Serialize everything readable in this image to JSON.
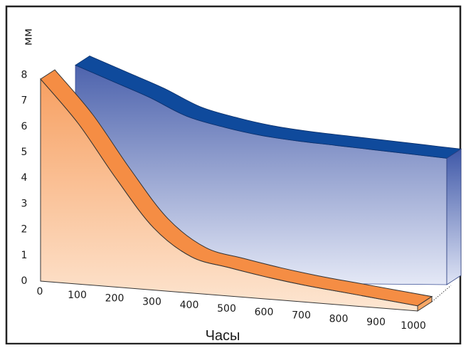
{
  "chart_data": {
    "type": "area",
    "title": "",
    "xlabel": "Часы",
    "ylabel": "мм",
    "x": [
      0,
      100,
      200,
      300,
      400,
      500,
      600,
      700,
      800,
      900,
      1000
    ],
    "x_tick_labels": [
      "0",
      "100",
      "200",
      "300",
      "400",
      "500",
      "600",
      "700",
      "800",
      "900",
      "1000"
    ],
    "y_tick_labels": [
      "0",
      "1",
      "2",
      "3",
      "4",
      "5",
      "6",
      "7",
      "8"
    ],
    "ylim": [
      0,
      8
    ],
    "xlim": [
      0,
      1000
    ],
    "grid": false,
    "series": [
      {
        "color": "#f7944a",
        "values": [
          7.8,
          6.2,
          4.2,
          2.4,
          1.4,
          1.1,
          0.85,
          0.65,
          0.5,
          0.35,
          0.2
        ]
      },
      {
        "color": "#1f4e9e",
        "values": [
          8.2,
          7.6,
          7.0,
          6.3,
          5.9,
          5.6,
          5.4,
          5.25,
          5.1,
          4.95,
          4.8
        ]
      }
    ]
  }
}
